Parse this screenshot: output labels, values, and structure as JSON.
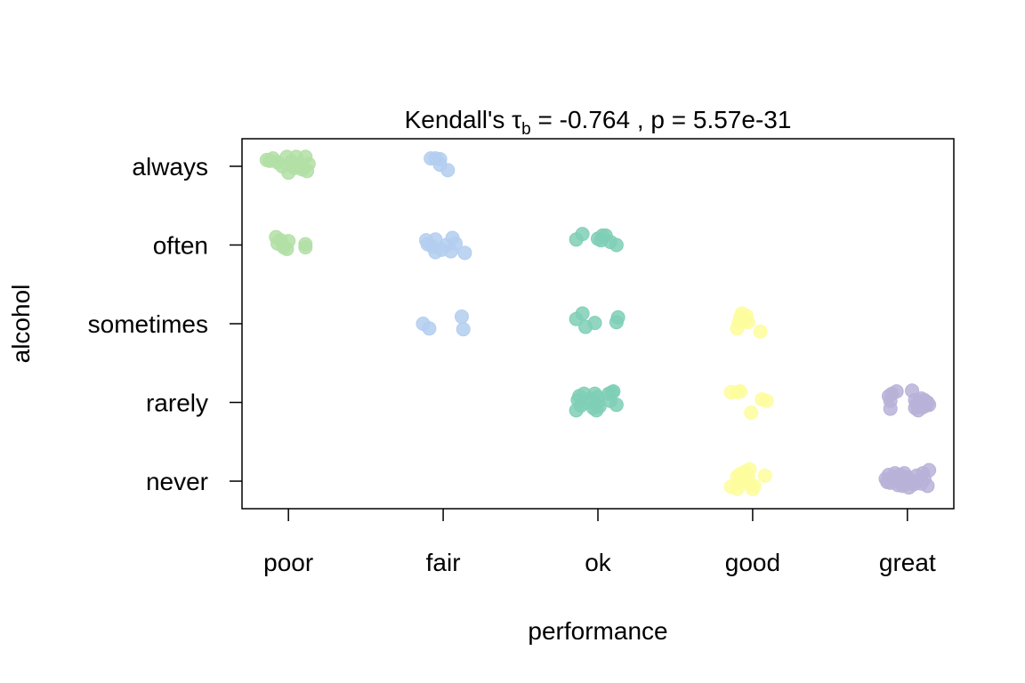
{
  "chart_data": {
    "type": "scatter",
    "title_prefix": "Kendall's τ",
    "title_sub": "b",
    "title_suffix": " = -0.764 , p = 5.57e-31",
    "xlabel": "performance",
    "ylabel": "alcohol",
    "x_categories": [
      "poor",
      "fair",
      "ok",
      "good",
      "great"
    ],
    "y_categories": [
      "never",
      "rarely",
      "sometimes",
      "often",
      "always"
    ],
    "jitter": true,
    "colors": {
      "poor": "#b2dfa5",
      "fair": "#b3cef0",
      "ok": "#7fcfb6",
      "good": "#fdfd9e",
      "great": "#b9b2d8"
    },
    "points": [
      {
        "x": "poor",
        "y": "always",
        "dx": -0.14,
        "dy": 0.08
      },
      {
        "x": "poor",
        "y": "always",
        "dx": -0.1,
        "dy": 0.1
      },
      {
        "x": "poor",
        "y": "always",
        "dx": -0.07,
        "dy": 0.05
      },
      {
        "x": "poor",
        "y": "always",
        "dx": -0.04,
        "dy": 0.0
      },
      {
        "x": "poor",
        "y": "always",
        "dx": -0.01,
        "dy": 0.12
      },
      {
        "x": "poor",
        "y": "always",
        "dx": 0.0,
        "dy": -0.08
      },
      {
        "x": "poor",
        "y": "always",
        "dx": 0.02,
        "dy": 0.06
      },
      {
        "x": "poor",
        "y": "always",
        "dx": 0.05,
        "dy": 0.12
      },
      {
        "x": "poor",
        "y": "always",
        "dx": 0.07,
        "dy": 0.02
      },
      {
        "x": "poor",
        "y": "always",
        "dx": 0.09,
        "dy": -0.04
      },
      {
        "x": "poor",
        "y": "always",
        "dx": 0.11,
        "dy": 0.12
      },
      {
        "x": "poor",
        "y": "always",
        "dx": 0.12,
        "dy": -0.06
      },
      {
        "x": "poor",
        "y": "always",
        "dx": 0.13,
        "dy": 0.03
      },
      {
        "x": "poor",
        "y": "always",
        "dx": -0.12,
        "dy": 0.07
      },
      {
        "x": "poor",
        "y": "always",
        "dx": 0.04,
        "dy": -0.02
      },
      {
        "x": "poor",
        "y": "often",
        "dx": -0.08,
        "dy": 0.1
      },
      {
        "x": "poor",
        "y": "often",
        "dx": -0.07,
        "dy": 0.02
      },
      {
        "x": "poor",
        "y": "often",
        "dx": -0.05,
        "dy": 0.06
      },
      {
        "x": "poor",
        "y": "often",
        "dx": -0.03,
        "dy": -0.03
      },
      {
        "x": "poor",
        "y": "often",
        "dx": -0.01,
        "dy": -0.05
      },
      {
        "x": "poor",
        "y": "often",
        "dx": 0.0,
        "dy": 0.05
      },
      {
        "x": "poor",
        "y": "often",
        "dx": 0.11,
        "dy": 0.01
      },
      {
        "x": "poor",
        "y": "often",
        "dx": 0.11,
        "dy": -0.03
      },
      {
        "x": "fair",
        "y": "always",
        "dx": -0.08,
        "dy": 0.1
      },
      {
        "x": "fair",
        "y": "always",
        "dx": -0.05,
        "dy": 0.1
      },
      {
        "x": "fair",
        "y": "always",
        "dx": -0.02,
        "dy": 0.09
      },
      {
        "x": "fair",
        "y": "always",
        "dx": -0.02,
        "dy": 0.02
      },
      {
        "x": "fair",
        "y": "always",
        "dx": 0.03,
        "dy": -0.05
      },
      {
        "x": "fair",
        "y": "often",
        "dx": -0.11,
        "dy": 0.06
      },
      {
        "x": "fair",
        "y": "often",
        "dx": -0.1,
        "dy": 0.01
      },
      {
        "x": "fair",
        "y": "often",
        "dx": -0.07,
        "dy": -0.02
      },
      {
        "x": "fair",
        "y": "often",
        "dx": -0.05,
        "dy": 0.07
      },
      {
        "x": "fair",
        "y": "often",
        "dx": -0.05,
        "dy": -0.09
      },
      {
        "x": "fair",
        "y": "often",
        "dx": -0.01,
        "dy": -0.06
      },
      {
        "x": "fair",
        "y": "often",
        "dx": 0.02,
        "dy": 0.0
      },
      {
        "x": "fair",
        "y": "often",
        "dx": 0.05,
        "dy": -0.08
      },
      {
        "x": "fair",
        "y": "often",
        "dx": 0.06,
        "dy": 0.09
      },
      {
        "x": "fair",
        "y": "often",
        "dx": 0.08,
        "dy": 0.02
      },
      {
        "x": "fair",
        "y": "often",
        "dx": 0.14,
        "dy": -0.1
      },
      {
        "x": "fair",
        "y": "sometimes",
        "dx": -0.13,
        "dy": 0.0
      },
      {
        "x": "fair",
        "y": "sometimes",
        "dx": -0.09,
        "dy": -0.06
      },
      {
        "x": "fair",
        "y": "sometimes",
        "dx": 0.12,
        "dy": 0.09
      },
      {
        "x": "fair",
        "y": "sometimes",
        "dx": 0.13,
        "dy": -0.07
      },
      {
        "x": "ok",
        "y": "often",
        "dx": -0.14,
        "dy": 0.07
      },
      {
        "x": "ok",
        "y": "often",
        "dx": -0.1,
        "dy": 0.14
      },
      {
        "x": "ok",
        "y": "often",
        "dx": 0.0,
        "dy": 0.08
      },
      {
        "x": "ok",
        "y": "often",
        "dx": 0.02,
        "dy": 0.06
      },
      {
        "x": "ok",
        "y": "often",
        "dx": 0.03,
        "dy": 0.12
      },
      {
        "x": "ok",
        "y": "often",
        "dx": 0.05,
        "dy": 0.12
      },
      {
        "x": "ok",
        "y": "often",
        "dx": 0.08,
        "dy": 0.04
      },
      {
        "x": "ok",
        "y": "often",
        "dx": 0.12,
        "dy": 0.0
      },
      {
        "x": "ok",
        "y": "sometimes",
        "dx": -0.14,
        "dy": 0.06
      },
      {
        "x": "ok",
        "y": "sometimes",
        "dx": -0.1,
        "dy": 0.13
      },
      {
        "x": "ok",
        "y": "sometimes",
        "dx": -0.08,
        "dy": -0.04
      },
      {
        "x": "ok",
        "y": "sometimes",
        "dx": -0.02,
        "dy": 0.01
      },
      {
        "x": "ok",
        "y": "sometimes",
        "dx": 0.12,
        "dy": 0.02
      },
      {
        "x": "ok",
        "y": "sometimes",
        "dx": 0.13,
        "dy": 0.08
      },
      {
        "x": "ok",
        "y": "rarely",
        "dx": -0.14,
        "dy": -0.1
      },
      {
        "x": "ok",
        "y": "rarely",
        "dx": -0.13,
        "dy": 0.03
      },
      {
        "x": "ok",
        "y": "rarely",
        "dx": -0.12,
        "dy": 0.08
      },
      {
        "x": "ok",
        "y": "rarely",
        "dx": -0.11,
        "dy": -0.04
      },
      {
        "x": "ok",
        "y": "rarely",
        "dx": -0.09,
        "dy": 0.11
      },
      {
        "x": "ok",
        "y": "rarely",
        "dx": -0.07,
        "dy": 0.0
      },
      {
        "x": "ok",
        "y": "rarely",
        "dx": -0.05,
        "dy": 0.05
      },
      {
        "x": "ok",
        "y": "rarely",
        "dx": -0.03,
        "dy": -0.07
      },
      {
        "x": "ok",
        "y": "rarely",
        "dx": -0.02,
        "dy": 0.11
      },
      {
        "x": "ok",
        "y": "rarely",
        "dx": 0.0,
        "dy": 0.0
      },
      {
        "x": "ok",
        "y": "rarely",
        "dx": 0.0,
        "dy": 0.07
      },
      {
        "x": "ok",
        "y": "rarely",
        "dx": -0.01,
        "dy": -0.1
      },
      {
        "x": "ok",
        "y": "rarely",
        "dx": 0.01,
        "dy": -0.05
      },
      {
        "x": "ok",
        "y": "rarely",
        "dx": 0.07,
        "dy": 0.11
      },
      {
        "x": "ok",
        "y": "rarely",
        "dx": 0.08,
        "dy": 0.02
      },
      {
        "x": "ok",
        "y": "rarely",
        "dx": 0.09,
        "dy": 0.13
      },
      {
        "x": "ok",
        "y": "rarely",
        "dx": 0.12,
        "dy": -0.03
      },
      {
        "x": "ok",
        "y": "rarely",
        "dx": 0.1,
        "dy": 0.14
      },
      {
        "x": "good",
        "y": "sometimes",
        "dx": -0.1,
        "dy": -0.06
      },
      {
        "x": "good",
        "y": "sometimes",
        "dx": -0.09,
        "dy": 0.01
      },
      {
        "x": "good",
        "y": "sometimes",
        "dx": -0.08,
        "dy": 0.08
      },
      {
        "x": "good",
        "y": "sometimes",
        "dx": -0.07,
        "dy": 0.13
      },
      {
        "x": "good",
        "y": "sometimes",
        "dx": -0.05,
        "dy": 0.04
      },
      {
        "x": "good",
        "y": "sometimes",
        "dx": -0.04,
        "dy": 0.1
      },
      {
        "x": "good",
        "y": "sometimes",
        "dx": -0.03,
        "dy": 0.02
      },
      {
        "x": "good",
        "y": "sometimes",
        "dx": 0.05,
        "dy": -0.1
      },
      {
        "x": "good",
        "y": "rarely",
        "dx": -0.14,
        "dy": 0.13
      },
      {
        "x": "good",
        "y": "rarely",
        "dx": -0.1,
        "dy": 0.13
      },
      {
        "x": "good",
        "y": "rarely",
        "dx": -0.08,
        "dy": 0.14
      },
      {
        "x": "good",
        "y": "rarely",
        "dx": -0.01,
        "dy": -0.13
      },
      {
        "x": "good",
        "y": "rarely",
        "dx": 0.06,
        "dy": 0.04
      },
      {
        "x": "good",
        "y": "rarely",
        "dx": 0.09,
        "dy": 0.02
      },
      {
        "x": "good",
        "y": "never",
        "dx": -0.14,
        "dy": -0.07
      },
      {
        "x": "good",
        "y": "never",
        "dx": -0.1,
        "dy": -0.1
      },
      {
        "x": "good",
        "y": "never",
        "dx": -0.1,
        "dy": 0.06
      },
      {
        "x": "good",
        "y": "never",
        "dx": -0.09,
        "dy": -0.02
      },
      {
        "x": "good",
        "y": "never",
        "dx": -0.08,
        "dy": 0.09
      },
      {
        "x": "good",
        "y": "never",
        "dx": -0.06,
        "dy": -0.03
      },
      {
        "x": "good",
        "y": "never",
        "dx": -0.05,
        "dy": 0.12
      },
      {
        "x": "good",
        "y": "never",
        "dx": -0.04,
        "dy": 0.1
      },
      {
        "x": "good",
        "y": "never",
        "dx": -0.03,
        "dy": 0.05
      },
      {
        "x": "good",
        "y": "never",
        "dx": -0.02,
        "dy": 0.15
      },
      {
        "x": "good",
        "y": "never",
        "dx": 0.0,
        "dy": -0.1
      },
      {
        "x": "good",
        "y": "never",
        "dx": 0.01,
        "dy": -0.06
      },
      {
        "x": "good",
        "y": "never",
        "dx": 0.08,
        "dy": 0.07
      },
      {
        "x": "great",
        "y": "rarely",
        "dx": -0.12,
        "dy": 0.08
      },
      {
        "x": "great",
        "y": "rarely",
        "dx": -0.11,
        "dy": 0.02
      },
      {
        "x": "great",
        "y": "rarely",
        "dx": -0.11,
        "dy": -0.08
      },
      {
        "x": "great",
        "y": "rarely",
        "dx": -0.1,
        "dy": 0.11
      },
      {
        "x": "great",
        "y": "rarely",
        "dx": -0.07,
        "dy": 0.14
      },
      {
        "x": "great",
        "y": "rarely",
        "dx": 0.03,
        "dy": 0.15
      },
      {
        "x": "great",
        "y": "rarely",
        "dx": 0.05,
        "dy": 0.03
      },
      {
        "x": "great",
        "y": "rarely",
        "dx": 0.05,
        "dy": -0.07
      },
      {
        "x": "great",
        "y": "rarely",
        "dx": 0.06,
        "dy": -0.02
      },
      {
        "x": "great",
        "y": "rarely",
        "dx": 0.07,
        "dy": -0.1
      },
      {
        "x": "great",
        "y": "rarely",
        "dx": 0.08,
        "dy": 0.0
      },
      {
        "x": "great",
        "y": "rarely",
        "dx": 0.09,
        "dy": 0.05
      },
      {
        "x": "great",
        "y": "rarely",
        "dx": 0.1,
        "dy": -0.06
      },
      {
        "x": "great",
        "y": "rarely",
        "dx": 0.11,
        "dy": 0.03
      },
      {
        "x": "great",
        "y": "rarely",
        "dx": 0.12,
        "dy": -0.04
      },
      {
        "x": "great",
        "y": "rarely",
        "dx": 0.13,
        "dy": 0.0
      },
      {
        "x": "great",
        "y": "rarely",
        "dx": 0.14,
        "dy": -0.03
      },
      {
        "x": "great",
        "y": "never",
        "dx": -0.14,
        "dy": 0.03
      },
      {
        "x": "great",
        "y": "never",
        "dx": -0.13,
        "dy": -0.01
      },
      {
        "x": "great",
        "y": "never",
        "dx": -0.12,
        "dy": 0.08
      },
      {
        "x": "great",
        "y": "never",
        "dx": -0.11,
        "dy": -0.02
      },
      {
        "x": "great",
        "y": "never",
        "dx": -0.09,
        "dy": 0.05
      },
      {
        "x": "great",
        "y": "never",
        "dx": -0.08,
        "dy": 0.1
      },
      {
        "x": "great",
        "y": "never",
        "dx": -0.07,
        "dy": 0.0
      },
      {
        "x": "great",
        "y": "never",
        "dx": -0.06,
        "dy": -0.05
      },
      {
        "x": "great",
        "y": "never",
        "dx": -0.05,
        "dy": 0.08
      },
      {
        "x": "great",
        "y": "never",
        "dx": -0.04,
        "dy": 0.02
      },
      {
        "x": "great",
        "y": "never",
        "dx": -0.03,
        "dy": -0.06
      },
      {
        "x": "great",
        "y": "never",
        "dx": -0.02,
        "dy": 0.1
      },
      {
        "x": "great",
        "y": "never",
        "dx": -0.01,
        "dy": -0.02
      },
      {
        "x": "great",
        "y": "never",
        "dx": 0.0,
        "dy": 0.05
      },
      {
        "x": "great",
        "y": "never",
        "dx": 0.01,
        "dy": -0.08
      },
      {
        "x": "great",
        "y": "never",
        "dx": 0.02,
        "dy": 0.01
      },
      {
        "x": "great",
        "y": "never",
        "dx": 0.04,
        "dy": -0.04
      },
      {
        "x": "great",
        "y": "never",
        "dx": 0.06,
        "dy": 0.07
      },
      {
        "x": "great",
        "y": "never",
        "dx": 0.07,
        "dy": 0.0
      },
      {
        "x": "great",
        "y": "never",
        "dx": 0.09,
        "dy": -0.03
      },
      {
        "x": "great",
        "y": "never",
        "dx": 0.1,
        "dy": 0.1
      },
      {
        "x": "great",
        "y": "never",
        "dx": 0.11,
        "dy": 0.03
      },
      {
        "x": "great",
        "y": "never",
        "dx": 0.13,
        "dy": -0.06
      },
      {
        "x": "great",
        "y": "never",
        "dx": 0.14,
        "dy": 0.14
      }
    ]
  }
}
